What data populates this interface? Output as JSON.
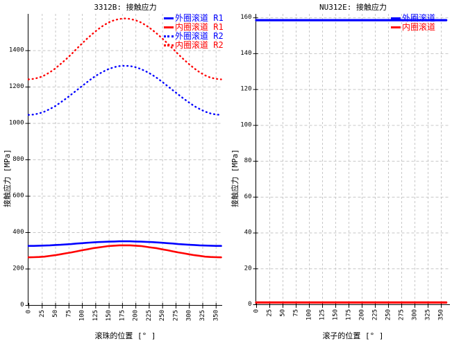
{
  "colors": {
    "outer_race": "#0000ff",
    "inner_race": "#ff0000",
    "grid": "#c6c6c6",
    "axis": "#000000",
    "text": "#000000"
  },
  "chart_data": [
    {
      "type": "line",
      "title": "3312B: 接触应力",
      "xlabel": "滚珠的位置 [° ]",
      "ylabel": "接触应力 [MPa]",
      "grid": true,
      "legend_position": "top-right",
      "xlim": [
        0,
        362
      ],
      "ylim": [
        0,
        1600
      ],
      "xticks": [
        0,
        25,
        50,
        75,
        100,
        125,
        150,
        175,
        200,
        225,
        250,
        275,
        300,
        325,
        350
      ],
      "yticks": [
        0,
        200,
        400,
        600,
        800,
        1000,
        1200,
        1400
      ],
      "x": [
        0,
        10,
        20,
        30,
        40,
        50,
        60,
        70,
        80,
        90,
        100,
        110,
        120,
        130,
        140,
        150,
        160,
        170,
        180,
        190,
        200,
        210,
        220,
        230,
        240,
        250,
        260,
        270,
        280,
        290,
        300,
        310,
        320,
        330,
        340,
        350,
        360
      ],
      "series": [
        {
          "name": "外圈滚道 R1",
          "color": "#0000ff",
          "style": "solid",
          "values": [
            325,
            325,
            326,
            327,
            328,
            330,
            331,
            333,
            335,
            338,
            340,
            342,
            344,
            346,
            347,
            348,
            349,
            350,
            350,
            350,
            349,
            348,
            347,
            346,
            344,
            342,
            340,
            338,
            335,
            333,
            331,
            330,
            328,
            327,
            326,
            325,
            325
          ]
        },
        {
          "name": "内圈滚道 R1",
          "color": "#ff0000",
          "style": "solid",
          "values": [
            262,
            263,
            264,
            266,
            270,
            274,
            279,
            284,
            289,
            295,
            301,
            306,
            312,
            316,
            320,
            324,
            326,
            328,
            328,
            328,
            326,
            324,
            320,
            316,
            312,
            306,
            301,
            295,
            289,
            284,
            279,
            274,
            270,
            266,
            264,
            263,
            262
          ]
        },
        {
          "name": "外圈滚道 R2",
          "color": "#0000ff",
          "style": "dotted",
          "values": [
            1045,
            1047,
            1053,
            1063,
            1077,
            1093,
            1113,
            1134,
            1157,
            1180,
            1203,
            1226,
            1248,
            1267,
            1283,
            1297,
            1307,
            1313,
            1315,
            1313,
            1307,
            1297,
            1283,
            1267,
            1248,
            1226,
            1203,
            1180,
            1157,
            1134,
            1113,
            1093,
            1077,
            1063,
            1053,
            1047,
            1045
          ]
        },
        {
          "name": "内圈滚道 R2",
          "color": "#ff0000",
          "style": "dotted",
          "values": [
            1240,
            1243,
            1250,
            1262,
            1279,
            1300,
            1324,
            1350,
            1378,
            1408,
            1437,
            1465,
            1491,
            1515,
            1536,
            1553,
            1565,
            1572,
            1575,
            1572,
            1565,
            1553,
            1536,
            1515,
            1491,
            1465,
            1437,
            1408,
            1378,
            1350,
            1324,
            1300,
            1279,
            1262,
            1250,
            1243,
            1240
          ]
        }
      ]
    },
    {
      "type": "line",
      "title": "NU312E: 接触应力",
      "xlabel": "滚子的位置 [° ]",
      "ylabel": "接触应力 [MPa]",
      "grid": true,
      "legend_position": "top-right",
      "xlim": [
        0,
        367
      ],
      "ylim": [
        0,
        162
      ],
      "xticks": [
        0,
        25,
        50,
        75,
        100,
        125,
        150,
        175,
        200,
        225,
        250,
        275,
        300,
        325,
        350
      ],
      "yticks": [
        0,
        20,
        40,
        60,
        80,
        100,
        120,
        140,
        160
      ],
      "x": [
        0,
        10,
        20,
        30,
        40,
        50,
        60,
        70,
        80,
        90,
        100,
        110,
        120,
        130,
        140,
        150,
        160,
        170,
        180,
        190,
        200,
        210,
        220,
        230,
        240,
        250,
        260,
        270,
        280,
        290,
        300,
        310,
        320,
        330,
        340,
        350,
        360
      ],
      "series": [
        {
          "name": "外圈滚道",
          "color": "#0000ff",
          "style": "solid",
          "values": [
            158.5,
            158.5,
            158.5,
            158.5,
            158.5,
            158.5,
            158.5,
            158.5,
            158.5,
            158.5,
            158.5,
            158.5,
            158.5,
            158.5,
            158.5,
            158.5,
            158.5,
            158.5,
            158.5,
            158.5,
            158.5,
            158.5,
            158.5,
            158.5,
            158.5,
            158.5,
            158.5,
            158.5,
            158.5,
            158.5,
            158.5,
            158.5,
            158.5,
            158.5,
            158.5,
            158.5,
            158.5
          ]
        },
        {
          "name": "内圈滚道",
          "color": "#ff0000",
          "style": "solid",
          "values": [
            1,
            1,
            1,
            1,
            1,
            1,
            1,
            1,
            1,
            1,
            1,
            1,
            1,
            1,
            1,
            1,
            1,
            1,
            1,
            1,
            1,
            1,
            1,
            1,
            1,
            1,
            1,
            1,
            1,
            1,
            1,
            1,
            1,
            1,
            1,
            1,
            1
          ]
        }
      ]
    }
  ]
}
